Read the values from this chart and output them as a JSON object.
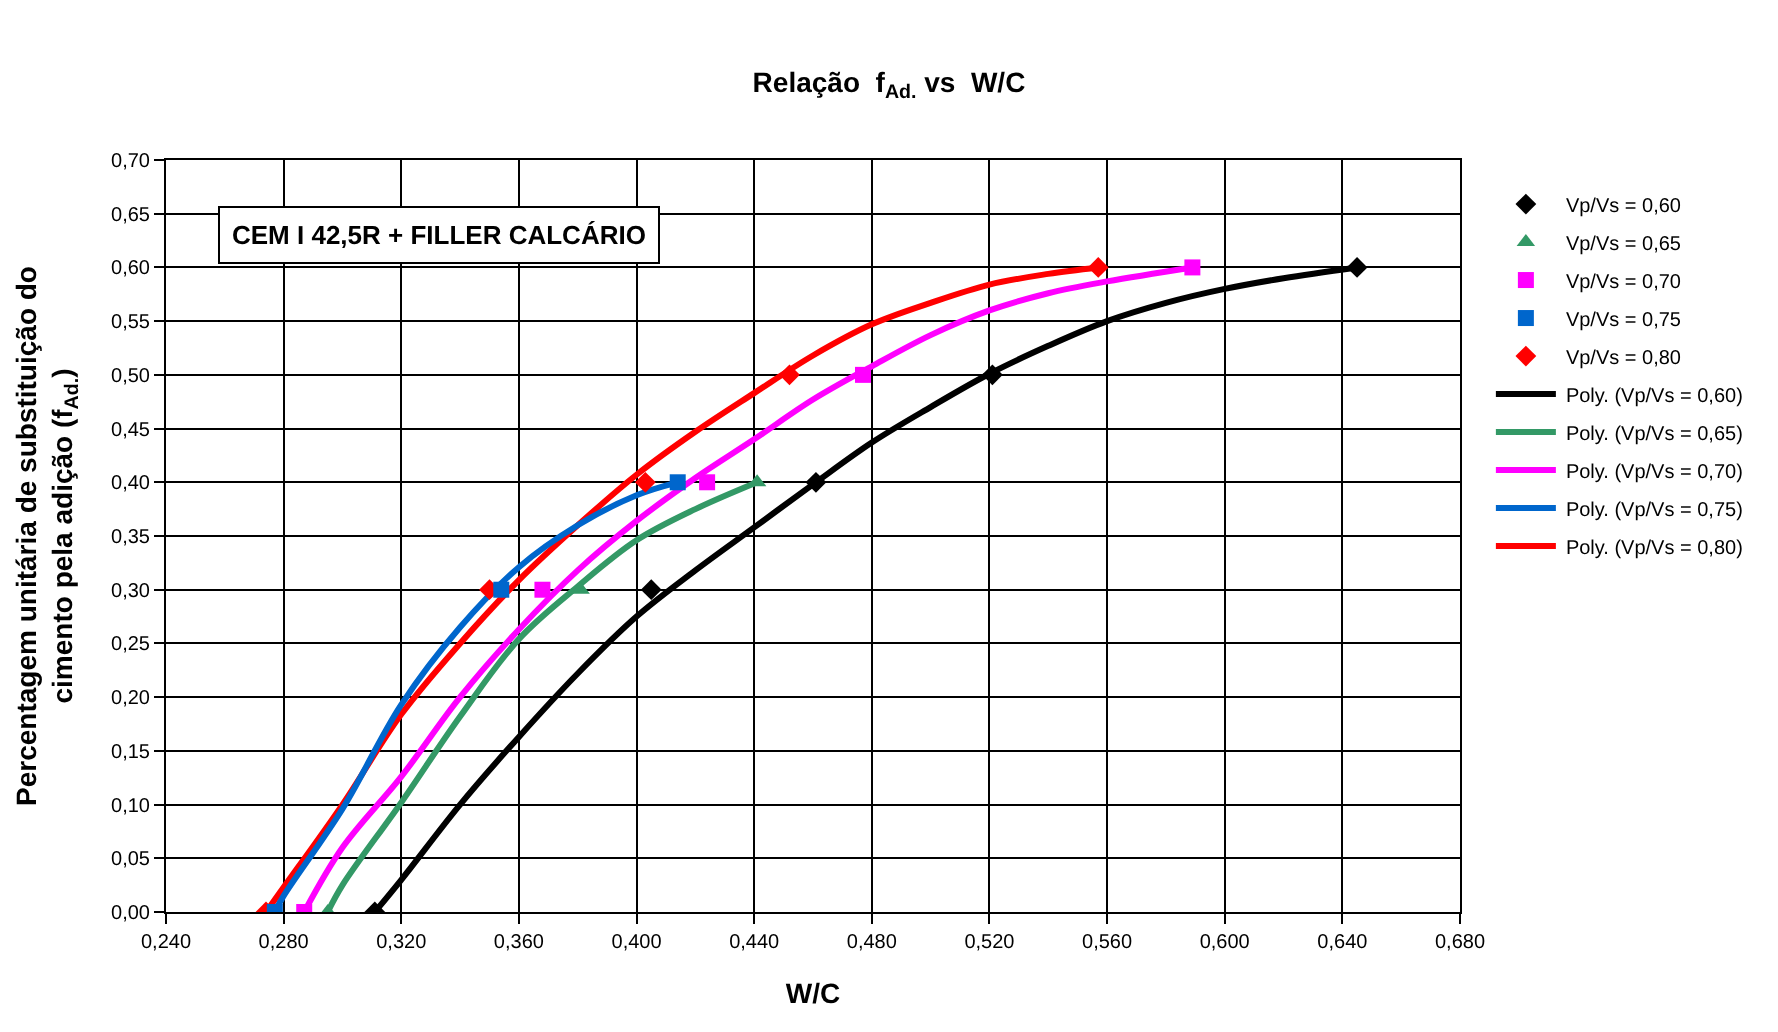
{
  "chart_data": {
    "type": "scatter",
    "title": "Relação  f$_{Ad.}$ vs  W/C",
    "xlabel": "W/C",
    "ylabel": "Percentagem unitária de substituição do cimento pela adição (f$_{Ad.}$)",
    "annotations": [
      "CEM I 42,5R + FILLER CALCÁRIO"
    ],
    "xlim": [
      0.24,
      0.68
    ],
    "ylim": [
      0,
      0.7
    ],
    "xticks": [
      {
        "value": 0.24,
        "label": "0,240"
      },
      {
        "value": 0.28,
        "label": "0,280"
      },
      {
        "value": 0.32,
        "label": "0,320"
      },
      {
        "value": 0.36,
        "label": "0,360"
      },
      {
        "value": 0.4,
        "label": "0,400"
      },
      {
        "value": 0.44,
        "label": "0,440"
      },
      {
        "value": 0.48,
        "label": "0,480"
      },
      {
        "value": 0.52,
        "label": "0,520"
      },
      {
        "value": 0.56,
        "label": "0,560"
      },
      {
        "value": 0.6,
        "label": "0,600"
      },
      {
        "value": 0.64,
        "label": "0,640"
      },
      {
        "value": 0.68,
        "label": "0,680"
      }
    ],
    "yticks": [
      {
        "value": 0,
        "label": "0,00"
      },
      {
        "value": 0.05,
        "label": "0,05"
      },
      {
        "value": 0.1,
        "label": "0,10"
      },
      {
        "value": 0.15,
        "label": "0,15"
      },
      {
        "value": 0.2,
        "label": "0,20"
      },
      {
        "value": 0.25,
        "label": "0,25"
      },
      {
        "value": 0.3,
        "label": "0,30"
      },
      {
        "value": 0.35,
        "label": "0,35"
      },
      {
        "value": 0.4,
        "label": "0,40"
      },
      {
        "value": 0.45,
        "label": "0,45"
      },
      {
        "value": 0.5,
        "label": "0,50"
      },
      {
        "value": 0.55,
        "label": "0,55"
      },
      {
        "value": 0.6,
        "label": "0,60"
      },
      {
        "value": 0.65,
        "label": "0,65"
      },
      {
        "value": 0.7,
        "label": "0,70"
      }
    ],
    "grid": true,
    "legend": "right",
    "series": [
      {
        "name": "Vp/Vs = 0,60",
        "marker": "diamond",
        "color": "#000000",
        "x": [
          0.311,
          0.405,
          0.461,
          0.521,
          0.645
        ],
        "values": [
          0,
          0.3,
          0.4,
          0.5,
          0.6
        ]
      },
      {
        "name": "Vp/Vs = 0,65",
        "marker": "triangle",
        "color": "#339966",
        "x": [
          0.295,
          0.381,
          0.441
        ],
        "values": [
          0,
          0.3,
          0.4
        ]
      },
      {
        "name": "Vp/Vs = 0,70",
        "marker": "square",
        "color": "#ff00ff",
        "x": [
          0.287,
          0.368,
          0.424,
          0.477,
          0.589
        ],
        "values": [
          0,
          0.3,
          0.4,
          0.5,
          0.6
        ]
      },
      {
        "name": "Vp/Vs = 0,75",
        "marker": "square",
        "color": "#0066cc",
        "x": [
          0.277,
          0.354,
          0.414
        ],
        "values": [
          0,
          0.3,
          0.4
        ]
      },
      {
        "name": "Vp/Vs = 0,80",
        "marker": "diamond",
        "color": "#ff0000",
        "x": [
          0.274,
          0.35,
          0.403,
          0.452,
          0.557
        ],
        "values": [
          0,
          0.3,
          0.4,
          0.5,
          0.6
        ]
      },
      {
        "name": "Poly. (Vp/Vs = 0,60)",
        "type": "line",
        "color": "#000000",
        "x": [
          0.311,
          0.32,
          0.34,
          0.36,
          0.38,
          0.4,
          0.42,
          0.44,
          0.46,
          0.48,
          0.5,
          0.52,
          0.54,
          0.56,
          0.58,
          0.6,
          0.62,
          0.645
        ],
        "values": [
          0,
          0.03,
          0.1,
          0.163,
          0.222,
          0.275,
          0.318,
          0.358,
          0.398,
          0.437,
          0.47,
          0.501,
          0.527,
          0.55,
          0.567,
          0.58,
          0.59,
          0.6
        ]
      },
      {
        "name": "Poly. (Vp/Vs = 0,65)",
        "type": "line",
        "color": "#339966",
        "x": [
          0.295,
          0.3,
          0.32,
          0.34,
          0.36,
          0.38,
          0.4,
          0.42,
          0.441
        ],
        "values": [
          0,
          0.025,
          0.102,
          0.182,
          0.254,
          0.303,
          0.346,
          0.375,
          0.4
        ]
      },
      {
        "name": "Poly. (Vp/Vs = 0,70)",
        "type": "line",
        "color": "#ff00ff",
        "x": [
          0.287,
          0.3,
          0.32,
          0.34,
          0.36,
          0.38,
          0.4,
          0.42,
          0.44,
          0.46,
          0.48,
          0.5,
          0.52,
          0.54,
          0.56,
          0.589
        ],
        "values": [
          0,
          0.06,
          0.126,
          0.2,
          0.263,
          0.318,
          0.364,
          0.404,
          0.44,
          0.477,
          0.508,
          0.537,
          0.56,
          0.576,
          0.587,
          0.6
        ]
      },
      {
        "name": "Poly. (Vp/Vs = 0,75)",
        "type": "line",
        "color": "#0066cc",
        "x": [
          0.277,
          0.28,
          0.3,
          0.32,
          0.34,
          0.36,
          0.38,
          0.4,
          0.414
        ],
        "values": [
          0,
          0.015,
          0.096,
          0.193,
          0.265,
          0.321,
          0.36,
          0.388,
          0.4
        ]
      },
      {
        "name": "Poly. (Vp/Vs = 0,80)",
        "type": "line",
        "color": "#ff0000",
        "x": [
          0.274,
          0.28,
          0.3,
          0.32,
          0.34,
          0.36,
          0.38,
          0.4,
          0.42,
          0.44,
          0.46,
          0.48,
          0.5,
          0.52,
          0.54,
          0.557
        ],
        "values": [
          0,
          0.023,
          0.1,
          0.184,
          0.25,
          0.309,
          0.36,
          0.407,
          0.447,
          0.483,
          0.518,
          0.547,
          0.567,
          0.584,
          0.594,
          0.6
        ]
      }
    ]
  }
}
